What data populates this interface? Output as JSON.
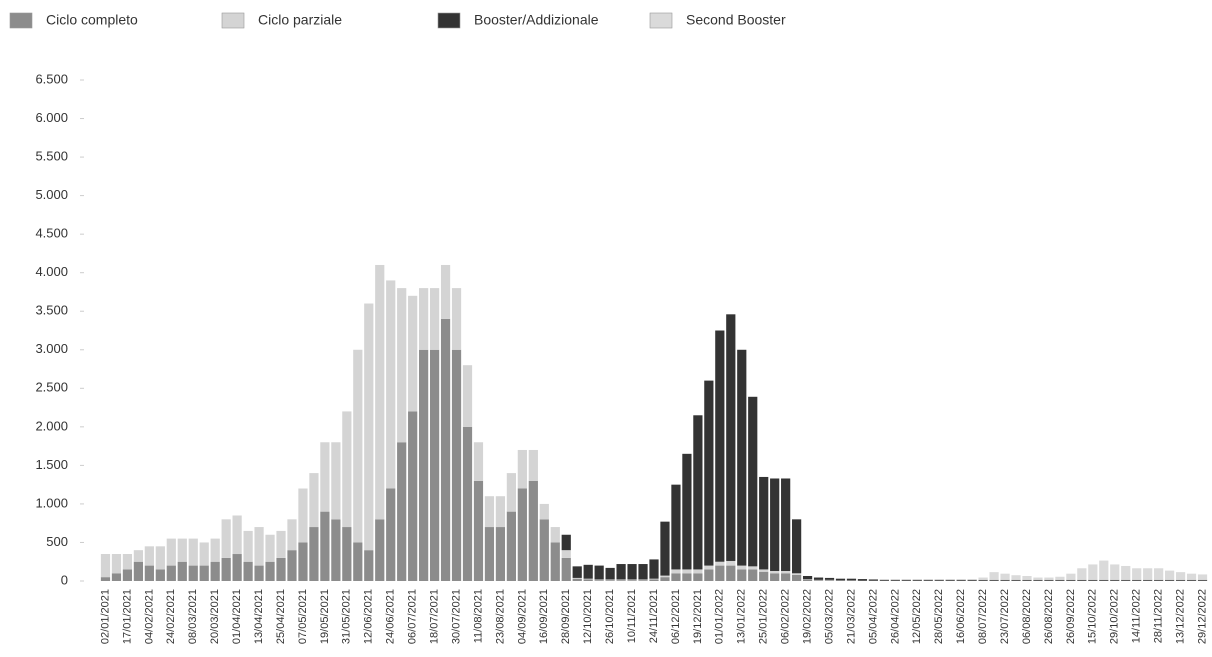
{
  "chart_data": {
    "type": "stacked_bar",
    "categories": [
      "02/01/2021",
      null,
      "17/01/2021",
      null,
      "04/02/2021",
      null,
      "24/02/2021",
      null,
      "08/03/2021",
      null,
      "20/03/2021",
      null,
      "01/04/2021",
      null,
      "13/04/2021",
      null,
      "25/04/2021",
      null,
      "07/05/2021",
      null,
      "19/05/2021",
      null,
      "31/05/2021",
      null,
      "12/06/2021",
      null,
      "24/06/2021",
      null,
      "06/07/2021",
      null,
      "18/07/2021",
      null,
      "30/07/2021",
      null,
      "11/08/2021",
      null,
      "23/08/2021",
      null,
      "04/09/2021",
      null,
      "16/09/2021",
      null,
      "28/09/2021",
      null,
      "12/10/2021",
      null,
      "26/10/2021",
      null,
      "10/11/2021",
      null,
      "24/11/2021",
      null,
      "06/12/2021",
      null,
      "19/12/2021",
      null,
      "01/01/2022",
      null,
      "13/01/2022",
      null,
      "25/01/2022",
      null,
      "06/02/2022",
      null,
      "19/02/2022",
      null,
      "05/03/2022",
      null,
      "21/03/2022",
      null,
      "05/04/2022",
      null,
      "26/04/2022",
      null,
      "12/05/2022",
      null,
      "28/05/2022",
      null,
      "16/06/2022",
      null,
      "08/07/2022",
      null,
      "23/07/2022",
      null,
      "06/08/2022",
      null,
      "26/08/2022",
      null,
      "26/09/2022",
      null,
      "15/10/2022",
      null,
      "29/10/2022",
      null,
      "14/11/2022",
      null,
      "28/11/2022",
      null,
      "13/12/2022",
      null,
      "29/12/2022"
    ],
    "series": [
      {
        "name": "Ciclo completo",
        "color": "#8c8c8c",
        "values": [
          50,
          100,
          150,
          250,
          200,
          150,
          200,
          250,
          200,
          200,
          250,
          300,
          350,
          250,
          200,
          250,
          300,
          400,
          500,
          700,
          900,
          800,
          700,
          500,
          400,
          800,
          1200,
          1800,
          2200,
          3000,
          3000,
          3400,
          3000,
          2000,
          1300,
          700,
          700,
          900,
          1200,
          1300,
          800,
          500,
          300,
          30,
          20,
          10,
          10,
          10,
          10,
          10,
          20,
          50,
          100,
          100,
          100,
          150,
          200,
          200,
          150,
          150,
          120,
          100,
          100,
          80,
          20,
          10,
          10,
          10,
          10,
          5,
          5,
          5,
          5,
          5,
          5,
          5,
          5,
          5,
          5,
          5,
          5,
          5,
          5,
          5,
          5,
          5,
          5,
          5,
          5,
          5,
          5,
          5,
          5,
          5,
          5,
          5,
          5,
          5,
          5,
          5,
          5
        ]
      },
      {
        "name": "Ciclo parziale",
        "color": "#d4d4d4",
        "values": [
          300,
          250,
          200,
          150,
          250,
          300,
          350,
          300,
          350,
          300,
          300,
          500,
          500,
          400,
          500,
          350,
          350,
          400,
          700,
          700,
          900,
          1000,
          1500,
          2500,
          3200,
          3300,
          2700,
          2000,
          1500,
          800,
          800,
          700,
          800,
          800,
          500,
          400,
          400,
          500,
          500,
          400,
          200,
          200,
          100,
          10,
          10,
          10,
          10,
          10,
          10,
          10,
          10,
          20,
          50,
          50,
          50,
          50,
          50,
          60,
          50,
          40,
          30,
          30,
          30,
          20,
          5,
          5,
          5,
          0,
          0,
          0,
          0,
          0,
          0,
          0,
          0,
          0,
          0,
          0,
          0,
          0,
          0,
          0,
          0,
          0,
          0,
          0,
          0,
          0,
          0,
          0,
          0,
          0,
          0,
          0,
          0,
          0,
          0,
          0,
          0,
          0,
          0
        ]
      },
      {
        "name": "Booster/Addizionale",
        "color": "#333333",
        "values": [
          0,
          0,
          0,
          0,
          0,
          0,
          0,
          0,
          0,
          0,
          0,
          0,
          0,
          0,
          0,
          0,
          0,
          0,
          0,
          0,
          0,
          0,
          0,
          0,
          0,
          0,
          0,
          0,
          0,
          0,
          0,
          0,
          0,
          0,
          0,
          0,
          0,
          0,
          0,
          0,
          0,
          0,
          200,
          150,
          180,
          180,
          150,
          200,
          200,
          200,
          250,
          700,
          1100,
          1500,
          2000,
          2400,
          3000,
          3200,
          2800,
          2200,
          1200,
          1200,
          1200,
          700,
          40,
          30,
          25,
          20,
          20,
          20,
          15,
          10,
          10,
          10,
          10,
          10,
          10,
          10,
          10,
          10,
          10,
          10,
          10,
          10,
          10,
          10,
          10,
          10,
          10,
          10,
          10,
          10,
          10,
          10,
          10,
          10,
          10,
          10,
          10,
          10,
          10
        ]
      },
      {
        "name": "Second Booster",
        "color": "#dadada",
        "values": [
          0,
          0,
          0,
          0,
          0,
          0,
          0,
          0,
          0,
          0,
          0,
          0,
          0,
          0,
          0,
          0,
          0,
          0,
          0,
          0,
          0,
          0,
          0,
          0,
          0,
          0,
          0,
          0,
          0,
          0,
          0,
          0,
          0,
          0,
          0,
          0,
          0,
          0,
          0,
          0,
          0,
          0,
          0,
          0,
          0,
          0,
          0,
          0,
          0,
          0,
          0,
          0,
          0,
          0,
          0,
          0,
          0,
          0,
          0,
          0,
          0,
          0,
          0,
          0,
          0,
          0,
          0,
          0,
          0,
          0,
          0,
          10,
          10,
          10,
          10,
          10,
          10,
          10,
          10,
          10,
          30,
          100,
          80,
          60,
          50,
          30,
          30,
          40,
          80,
          150,
          200,
          250,
          200,
          180,
          150,
          150,
          150,
          120,
          100,
          80,
          70
        ]
      }
    ],
    "ylim": [
      0,
      6500
    ],
    "yticks": [
      0,
      {
        "value": 500,
        "label": "500"
      },
      {
        "value": 1000,
        "label": "1.000"
      },
      {
        "value": 1500,
        "label": "1.500"
      },
      {
        "value": 2000,
        "label": "2.000"
      },
      {
        "value": 2500,
        "label": "2.500"
      },
      {
        "value": 3000,
        "label": "3.000"
      },
      {
        "value": 3500,
        "label": "3.500"
      },
      {
        "value": 4000,
        "label": "4.000"
      },
      {
        "value": 4500,
        "label": "4.500"
      },
      {
        "value": 5000,
        "label": "5.000"
      },
      {
        "value": 5500,
        "label": "5.500"
      },
      {
        "value": 6000,
        "label": "6.000"
      },
      {
        "value": 6500,
        "label": "6.500"
      }
    ],
    "grid": false
  }
}
